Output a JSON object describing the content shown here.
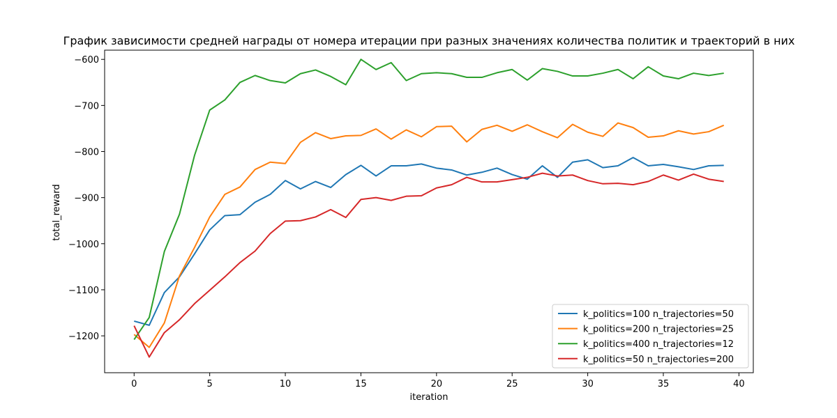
{
  "chart_data": {
    "type": "line",
    "title": "График зависимости средней награды от номера итерации при разных значениях количества политик и траекторий в них",
    "xlabel": "iteration",
    "ylabel": "total_reward",
    "xlim": [
      -1.95,
      40.95
    ],
    "ylim": [
      -1280,
      -580
    ],
    "xticks": [
      0,
      5,
      10,
      15,
      20,
      25,
      30,
      35,
      40
    ],
    "yticks": [
      -1200,
      -1100,
      -1000,
      -900,
      -800,
      -700,
      -600
    ],
    "grid": false,
    "legend_position": "lower-right",
    "x": [
      0,
      1,
      2,
      3,
      4,
      5,
      6,
      7,
      8,
      9,
      10,
      11,
      12,
      13,
      14,
      15,
      16,
      17,
      18,
      19,
      20,
      21,
      22,
      23,
      24,
      25,
      26,
      27,
      28,
      29,
      30,
      31,
      32,
      33,
      34,
      35,
      36,
      37,
      38,
      39
    ],
    "series": [
      {
        "name": "k_politics=100 n_trajectories=50",
        "color": "#1f77b4",
        "values": [
          -1168,
          -1177,
          -1106,
          -1072,
          -1022,
          -970,
          -939,
          -937,
          -910,
          -893,
          -863,
          -881,
          -865,
          -878,
          -850,
          -830,
          -853,
          -831,
          -831,
          -827,
          -836,
          -840,
          -851,
          -845,
          -836,
          -850,
          -860,
          -831,
          -856,
          -823,
          -818,
          -835,
          -831,
          -813,
          -831,
          -828,
          -833,
          -839,
          -831,
          -830
        ]
      },
      {
        "name": "k_politics=200 n_trajectories=25",
        "color": "#ff7f0e",
        "values": [
          -1197,
          -1225,
          -1172,
          -1070,
          -1008,
          -942,
          -893,
          -877,
          -839,
          -823,
          -826,
          -780,
          -759,
          -772,
          -766,
          -765,
          -751,
          -773,
          -753,
          -768,
          -746,
          -745,
          -779,
          -752,
          -743,
          -756,
          -742,
          -757,
          -770,
          -741,
          -758,
          -767,
          -738,
          -748,
          -769,
          -766,
          -755,
          -762,
          -757,
          -743
        ]
      },
      {
        "name": "k_politics=400 n_trajectories=12",
        "color": "#2ca02c",
        "values": [
          -1208,
          -1160,
          -1017,
          -936,
          -808,
          -710,
          -688,
          -650,
          -635,
          -646,
          -651,
          -631,
          -623,
          -637,
          -655,
          -600,
          -622,
          -607,
          -646,
          -631,
          -629,
          -631,
          -639,
          -639,
          -629,
          -622,
          -645,
          -620,
          -626,
          -636,
          -636,
          -630,
          -622,
          -642,
          -616,
          -636,
          -642,
          -630,
          -635,
          -630
        ]
      },
      {
        "name": "k_politics=50 n_trajectories=200",
        "color": "#d62728",
        "values": [
          -1178,
          -1246,
          -1193,
          -1165,
          -1130,
          -1101,
          -1072,
          -1041,
          -1016,
          -978,
          -951,
          -950,
          -942,
          -926,
          -943,
          -904,
          -900,
          -906,
          -897,
          -896,
          -879,
          -872,
          -856,
          -866,
          -866,
          -861,
          -856,
          -847,
          -853,
          -851,
          -863,
          -870,
          -869,
          -872,
          -865,
          -851,
          -862,
          -849,
          -860,
          -865
        ]
      }
    ]
  }
}
